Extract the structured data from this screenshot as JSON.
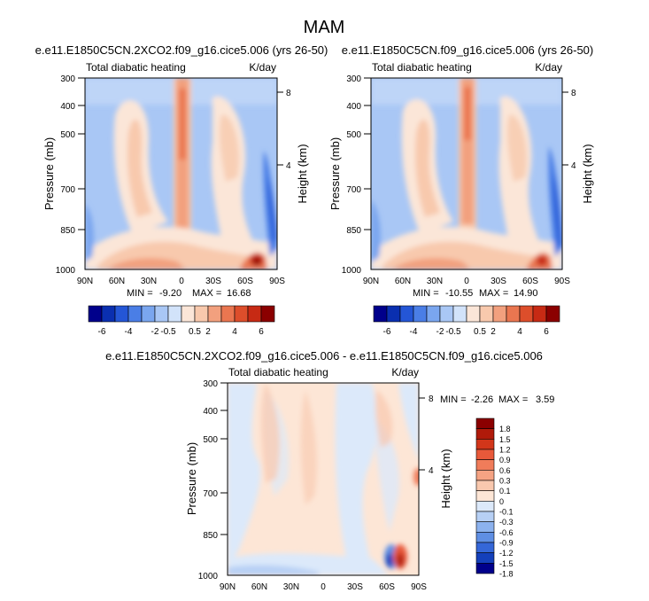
{
  "page": {
    "title": "MAM"
  },
  "chart_data": [
    {
      "type": "heatmap",
      "title": "e.e11.E1850C5CN.2XCO2.f09_g16.cice5.006 (yrs 26-50)",
      "left_label": "Total diabatic heating",
      "right_label": "K/day",
      "xlabel": "",
      "ylabel": "Pressure (mb)",
      "y2label": "Height (km)",
      "x_ticks": [
        "90N",
        "60N",
        "30N",
        "0",
        "30S",
        "60S",
        "90S"
      ],
      "y_ticks": [
        "300",
        "400",
        "500",
        "700",
        "850",
        "1000"
      ],
      "y2_ticks": [
        "8",
        "4"
      ],
      "stats": {
        "min_label": "MIN =",
        "min": "-9.20",
        "max_label": "MAX =",
        "max": "16.68"
      },
      "colorbar": {
        "orientation": "horizontal",
        "tick_labels": [
          "-6",
          "-4",
          "-2",
          "-0.5",
          "0.5",
          "2",
          "4",
          "6"
        ],
        "colors": [
          "#00008b",
          "#0a2fb0",
          "#2456d6",
          "#4a7ee6",
          "#7aa6ef",
          "#a9c7f5",
          "#d2e3fa",
          "#fbe6d8",
          "#f8c9ad",
          "#f2a07e",
          "#ea7650",
          "#dd4e2b",
          "#c72a14",
          "#8b0000"
        ]
      }
    },
    {
      "type": "heatmap",
      "title": "e.e11.E1850C5CN.f09_g16.cice5.006 (yrs 26-50)",
      "left_label": "Total diabatic heating",
      "right_label": "K/day",
      "xlabel": "",
      "ylabel": "Pressure (mb)",
      "y2label": "Height (km)",
      "x_ticks": [
        "90N",
        "60N",
        "30N",
        "0",
        "30S",
        "60S",
        "90S"
      ],
      "y_ticks": [
        "300",
        "400",
        "500",
        "700",
        "850",
        "1000"
      ],
      "y2_ticks": [
        "8",
        "4"
      ],
      "stats": {
        "min_label": "MIN =",
        "min": "-10.55",
        "max_label": "MAX =",
        "max": "14.90"
      },
      "colorbar": {
        "orientation": "horizontal",
        "tick_labels": [
          "-6",
          "-4",
          "-2",
          "-0.5",
          "0.5",
          "2",
          "4",
          "6"
        ],
        "colors": [
          "#00008b",
          "#0a2fb0",
          "#2456d6",
          "#4a7ee6",
          "#7aa6ef",
          "#a9c7f5",
          "#d2e3fa",
          "#fbe6d8",
          "#f8c9ad",
          "#f2a07e",
          "#ea7650",
          "#dd4e2b",
          "#c72a14",
          "#8b0000"
        ]
      }
    },
    {
      "type": "heatmap",
      "title": "e.e11.E1850C5CN.2XCO2.f09_g16.cice5.006 - e.e11.E1850C5CN.f09_g16.cice5.006",
      "left_label": "Total diabatic heating",
      "right_label": "K/day",
      "xlabel": "",
      "ylabel": "Pressure (mb)",
      "y2label": "Height (km)",
      "x_ticks": [
        "90N",
        "60N",
        "30N",
        "0",
        "30S",
        "60S",
        "90S"
      ],
      "y_ticks": [
        "300",
        "400",
        "500",
        "700",
        "850",
        "1000"
      ],
      "y2_ticks": [
        "8",
        "4"
      ],
      "stats": {
        "min_label": "MIN =",
        "min": "-2.26",
        "max_label": "MAX =",
        "max": "3.59"
      },
      "colorbar": {
        "orientation": "vertical",
        "tick_labels": [
          "1.8",
          "1.5",
          "1.2",
          "0.9",
          "0.6",
          "0.3",
          "0.1",
          "0",
          "-0.1",
          "-0.3",
          "-0.6",
          "-0.9",
          "-1.2",
          "-1.5",
          "-1.8"
        ],
        "colors": [
          "#8b0000",
          "#b01a0a",
          "#d2361a",
          "#e8593a",
          "#f07c5a",
          "#f5a383",
          "#f9c8ae",
          "#fde6d6",
          "#dce9fa",
          "#b7d0f5",
          "#8cb2ee",
          "#5f8fe4",
          "#3567d8",
          "#1440bb",
          "#00008b"
        ]
      }
    }
  ]
}
